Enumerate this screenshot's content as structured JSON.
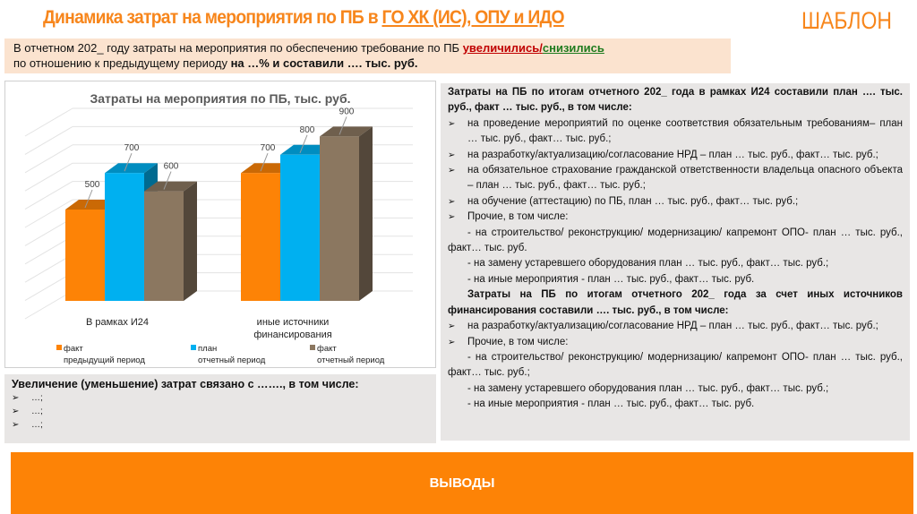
{
  "header": {
    "title_prefix": "Динамика затрат на мероприятия по ПБ в ",
    "title_underlined": "ГО ХК (ИС), ОПУ и ИДО",
    "template_label": "ШАБЛОН"
  },
  "intro": {
    "part1": "В отчетном 202_ году затраты на мероприятия по обеспечению требование по ПБ ",
    "increased": "увеличились",
    "slash": "/",
    "decreased": "снизились",
    "part2": "по отношению к предыдущему периоду ",
    "part3": "на …% и составили …. тыс. руб."
  },
  "chart_data": {
    "type": "bar",
    "title": "Затраты на мероприятия по ПБ, тыс. руб.",
    "categories": [
      [
        "В рамках И24"
      ],
      [
        "иные источники",
        "финансирования"
      ]
    ],
    "series": [
      {
        "name": [
          "факт",
          "предыдущий период"
        ],
        "values": [
          500,
          700
        ],
        "color": "#fd8306"
      },
      {
        "name": [
          "план",
          "отчетный период"
        ],
        "values": [
          700,
          800
        ],
        "color": "#00b0f0"
      },
      {
        "name": [
          "факт",
          "отчетный период"
        ],
        "values": [
          600,
          900
        ],
        "color": "#8b7760"
      }
    ],
    "ylim": [
      0,
      1000
    ],
    "grid": true,
    "legend": "bottom",
    "style": "3d-column"
  },
  "right_panel": {
    "heading1": "Затраты на ПБ по итогам отчетного 202_ года в рамках И24 составили план …. тыс. руб., факт … тыс. руб., в том числе:",
    "items1": [
      "на проведение мероприятий по оценке соответствия обязательным требованиям– план … тыс. руб., факт… тыс. руб.;",
      "на разработку/актуализацию/согласование НРД – план … тыс. руб., факт… тыс. руб.;",
      "на обязательное страхование гражданской ответственности владельца опасного объекта – план … тыс. руб., факт… тыс. руб.;",
      "на обучение (аттестацию) по ПБ, план … тыс. руб., факт… тыс. руб.;",
      "Прочие, в том числе:"
    ],
    "sub1": [
      "- на строительство/ реконструкцию/ модернизацию/ капремонт ОПО- план … тыс. руб., факт… тыс. руб.",
      "- на замену устаревшего оборудования план … тыс. руб., факт… тыс. руб.;",
      "- на иные мероприятия - план … тыс. руб., факт… тыс. руб."
    ],
    "heading2": "Затраты на ПБ по итогам отчетного 202_ года за счет иных источников финансирования составили …. тыс. руб., в том числе:",
    "items2": [
      "на разработку/актуализацию/согласование НРД – план … тыс. руб., факт… тыс. руб.;",
      "Прочие, в том числе:"
    ],
    "sub2": [
      "- на строительство/ реконструкцию/ модернизацию/ капремонт ОПО- план … тыс. руб., факт… тыс. руб.;",
      "- на замену устаревшего оборудования план … тыс. руб., факт… тыс. руб.;",
      "- на иные мероприятия - план … тыс. руб., факт… тыс. руб."
    ]
  },
  "left_panel": {
    "heading": "Увеличение (уменьшение) затрат связано с ……., в том числе:",
    "items": [
      "…;",
      "…;",
      "…;"
    ]
  },
  "footer": {
    "label": "ВЫВОДЫ"
  }
}
